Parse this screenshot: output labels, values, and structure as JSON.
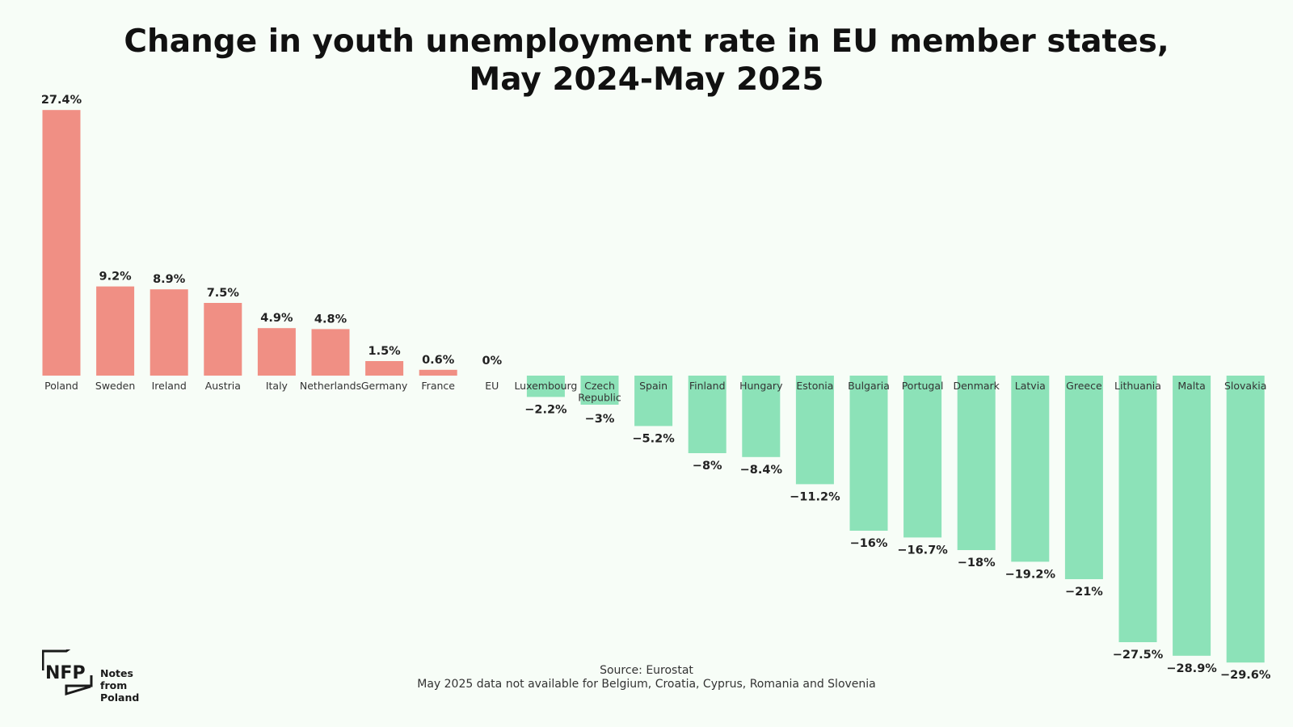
{
  "title": {
    "line1": "Change in youth unemployment rate in EU member states,",
    "line2": "May 2024-May 2025"
  },
  "source": {
    "line1": "Source: Eurostat",
    "line2": "May 2025 data not available for Belgium, Croatia, Cyprus, Romania and Slovenia"
  },
  "logo": {
    "mark": "NFP",
    "text_line1": "Notes from",
    "text_line2": "Poland"
  },
  "colors": {
    "positive": "#f08f84",
    "negative": "#8ce2b8",
    "background": "#f7fdf7"
  },
  "chart_data": {
    "type": "bar",
    "title": "Change in youth unemployment rate in EU member states, May 2024-May 2025",
    "categories": [
      "Poland",
      "Sweden",
      "Ireland",
      "Austria",
      "Italy",
      "Netherlands",
      "Germany",
      "France",
      "EU",
      "Luxembourg",
      "Czech Republic",
      "Spain",
      "Finland",
      "Hungary",
      "Estonia",
      "Bulgaria",
      "Portugal",
      "Denmark",
      "Latvia",
      "Greece",
      "Lithuania",
      "Malta",
      "Slovakia"
    ],
    "values": [
      27.4,
      9.2,
      8.9,
      7.5,
      4.9,
      4.8,
      1.5,
      0.6,
      0,
      -2.2,
      -3,
      -5.2,
      -8,
      -8.4,
      -11.2,
      -16,
      -16.7,
      -18,
      -19.2,
      -21,
      -27.5,
      -28.9,
      -29.6
    ],
    "value_labels": [
      "27.4%",
      "9.2%",
      "8.9%",
      "7.5%",
      "4.9%",
      "4.8%",
      "1.5%",
      "0.6%",
      "0%",
      "−2.2%",
      "−3%",
      "−5.2%",
      "−8%",
      "−8.4%",
      "−11.2%",
      "−16%",
      "−16.7%",
      "−18%",
      "−19.2%",
      "−21%",
      "−27.5%",
      "−28.9%",
      "−29.6%"
    ],
    "xlabel": "",
    "ylabel": "",
    "ylim": [
      -29.6,
      27.4
    ],
    "grid": false,
    "legend": "none"
  }
}
